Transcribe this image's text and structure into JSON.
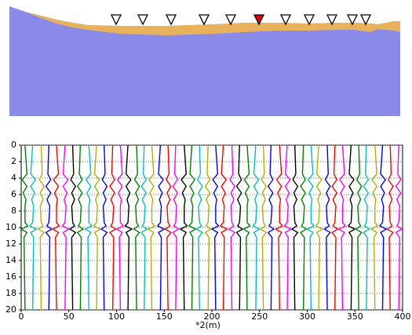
{
  "chart_data": [
    {
      "type": "profile",
      "x": [
        0,
        20,
        40,
        60,
        80,
        100,
        140,
        200,
        260,
        300,
        340,
        380,
        420,
        440,
        460,
        470,
        490,
        498
      ],
      "surface": [
        3,
        10,
        15,
        20,
        24,
        27,
        28,
        28,
        26,
        24,
        24,
        25,
        24,
        24,
        25,
        26,
        22,
        22
      ],
      "interface": [
        3,
        10,
        18,
        25,
        30,
        33,
        38,
        40,
        38,
        36,
        34,
        34,
        33,
        33,
        36,
        32,
        34,
        36
      ],
      "xlim": [
        0,
        498
      ],
      "ylim": [
        0,
        143
      ],
      "upper_color": "#e8b25c",
      "lower_color": "#8a8ae8",
      "receiver_x": [
        136,
        170,
        206,
        248,
        282,
        352,
        382,
        411,
        437,
        454
      ],
      "source_x": 318,
      "receiver_color": "#ffffff",
      "source_color": "#e00000"
    },
    {
      "type": "wiggle",
      "xlabel": "*2(m)",
      "xlim": [
        0,
        400
      ],
      "ylim": [
        20,
        0
      ],
      "xticks": [
        0,
        50,
        100,
        150,
        200,
        250,
        300,
        350,
        400
      ],
      "yticks": [
        0,
        2,
        4,
        6,
        8,
        10,
        12,
        14,
        16,
        18,
        20
      ],
      "grid": true,
      "t": [
        0,
        3.5,
        4.2,
        5,
        5.8,
        6.6,
        7.4,
        9.4,
        9.8,
        10.2,
        10.6,
        11.2,
        20
      ],
      "palette": [
        "#008000",
        "#00c0c0",
        "#b0b000",
        "#0000ff",
        "#ff0000",
        "#ff00ff",
        "#000000"
      ],
      "traces_x": [
        4,
        12,
        21,
        29,
        37,
        46,
        54,
        62,
        71,
        79,
        87,
        96,
        104,
        112,
        121,
        129,
        137,
        146,
        154,
        162,
        171,
        179,
        187,
        196,
        204,
        212,
        221,
        229,
        237,
        246,
        254,
        262,
        271,
        279,
        287,
        296,
        304,
        312,
        321,
        329,
        337,
        346,
        354,
        362,
        371,
        379,
        387,
        396
      ],
      "amplitudes": [
        [
          0,
          2,
          -3,
          2,
          -2,
          1,
          0,
          0,
          3,
          -4,
          2,
          -1,
          0
        ],
        [
          0,
          -2,
          3,
          -2,
          2,
          -1,
          1,
          0,
          -3,
          4,
          -2,
          1,
          0
        ],
        [
          0,
          1,
          -2,
          3,
          -1,
          2,
          -1,
          0,
          2,
          -3,
          3,
          -1,
          0
        ],
        [
          0,
          -1,
          2,
          -3,
          2,
          -2,
          1,
          0,
          -2,
          3,
          -3,
          1,
          0
        ],
        [
          0,
          2,
          -3,
          2,
          -2,
          1,
          0,
          0,
          3,
          -4,
          2,
          -1,
          0
        ],
        [
          0,
          -2,
          3,
          -2,
          2,
          -1,
          1,
          0,
          -3,
          4,
          -2,
          1,
          0
        ],
        [
          0,
          1,
          -2,
          3,
          -1,
          2,
          -1,
          0,
          2,
          -3,
          3,
          -1,
          0
        ],
        [
          0,
          -1,
          2,
          -3,
          2,
          -2,
          1,
          0,
          -2,
          3,
          -3,
          1,
          0
        ],
        [
          0,
          2,
          -3,
          2,
          -2,
          1,
          0,
          0,
          3,
          -4,
          2,
          -1,
          0
        ],
        [
          0,
          -2,
          3,
          -2,
          2,
          -1,
          1,
          0,
          -3,
          4,
          -2,
          1,
          0
        ],
        [
          0,
          1,
          -2,
          3,
          -1,
          2,
          -1,
          0,
          2,
          -3,
          3,
          -1,
          0
        ],
        [
          0,
          -1,
          2,
          -3,
          2,
          -2,
          1,
          0,
          -2,
          3,
          -3,
          1,
          0
        ],
        [
          0,
          2,
          -3,
          2,
          -2,
          1,
          0,
          0,
          3,
          -4,
          2,
          -1,
          0
        ],
        [
          0,
          -2,
          3,
          -2,
          2,
          -1,
          1,
          0,
          -3,
          4,
          -2,
          1,
          0
        ],
        [
          0,
          1,
          -2,
          3,
          -1,
          2,
          -1,
          0,
          2,
          -3,
          3,
          -1,
          0
        ],
        [
          0,
          -1,
          2,
          -3,
          2,
          -2,
          1,
          0,
          -2,
          3,
          -3,
          1,
          0
        ],
        [
          0,
          2,
          -3,
          2,
          -2,
          1,
          0,
          0,
          3,
          -4,
          2,
          -1,
          0
        ],
        [
          0,
          -2,
          3,
          -2,
          2,
          -1,
          1,
          0,
          -3,
          4,
          -2,
          1,
          0
        ],
        [
          0,
          1,
          -2,
          3,
          -1,
          2,
          -1,
          0,
          2,
          -3,
          3,
          -1,
          0
        ],
        [
          0,
          -1,
          2,
          -3,
          2,
          -2,
          1,
          0,
          -2,
          3,
          -3,
          1,
          0
        ],
        [
          0,
          2,
          -3,
          2,
          -2,
          1,
          0,
          0,
          3,
          -4,
          2,
          -1,
          0
        ],
        [
          0,
          -2,
          3,
          -2,
          2,
          -1,
          1,
          0,
          -3,
          4,
          -2,
          1,
          0
        ],
        [
          0,
          1,
          -2,
          3,
          -1,
          2,
          -1,
          0,
          2,
          -3,
          3,
          -1,
          0
        ],
        [
          0,
          -1,
          2,
          -3,
          2,
          -2,
          1,
          0,
          -2,
          3,
          -3,
          1,
          0
        ],
        [
          0,
          2,
          -3,
          2,
          -2,
          1,
          0,
          0,
          3,
          -4,
          2,
          -1,
          0
        ],
        [
          0,
          -2,
          3,
          -2,
          2,
          -1,
          1,
          0,
          -3,
          4,
          -2,
          1,
          0
        ],
        [
          0,
          1,
          -2,
          3,
          -1,
          2,
          -1,
          0,
          2,
          -3,
          3,
          -1,
          0
        ],
        [
          0,
          -1,
          2,
          -3,
          2,
          -2,
          1,
          0,
          -2,
          3,
          -3,
          1,
          0
        ],
        [
          0,
          2,
          -3,
          2,
          -2,
          1,
          0,
          0,
          3,
          -4,
          2,
          -1,
          0
        ],
        [
          0,
          -2,
          3,
          -2,
          2,
          -1,
          1,
          0,
          -3,
          4,
          -2,
          1,
          0
        ],
        [
          0,
          1,
          -2,
          3,
          -1,
          2,
          -1,
          0,
          2,
          -3,
          3,
          -1,
          0
        ],
        [
          0,
          -1,
          2,
          -3,
          2,
          -2,
          1,
          0,
          -2,
          3,
          -3,
          1,
          0
        ],
        [
          0,
          2,
          -3,
          2,
          -2,
          1,
          0,
          0,
          3,
          -4,
          2,
          -1,
          0
        ],
        [
          0,
          -2,
          3,
          -2,
          2,
          -1,
          1,
          0,
          -3,
          4,
          -2,
          1,
          0
        ],
        [
          0,
          1,
          -2,
          3,
          -1,
          2,
          -1,
          0,
          2,
          -3,
          3,
          -1,
          0
        ],
        [
          0,
          -1,
          2,
          -3,
          2,
          -2,
          1,
          0,
          -2,
          3,
          -3,
          1,
          0
        ],
        [
          0,
          2,
          -3,
          2,
          -2,
          1,
          0,
          0,
          3,
          -4,
          2,
          -1,
          0
        ],
        [
          0,
          -2,
          3,
          -2,
          2,
          -1,
          1,
          0,
          -3,
          4,
          -2,
          1,
          0
        ],
        [
          0,
          1,
          -2,
          3,
          -1,
          2,
          -1,
          0,
          2,
          -3,
          3,
          -1,
          0
        ],
        [
          0,
          -1,
          2,
          -3,
          2,
          -2,
          1,
          0,
          -2,
          3,
          -3,
          1,
          0
        ],
        [
          0,
          2,
          -3,
          2,
          -2,
          1,
          0,
          0,
          3,
          -4,
          2,
          -1,
          0
        ],
        [
          0,
          -2,
          3,
          -2,
          2,
          -1,
          1,
          0,
          -3,
          4,
          -2,
          1,
          0
        ],
        [
          0,
          1,
          -2,
          3,
          -1,
          2,
          -1,
          0,
          2,
          -3,
          3,
          -1,
          0
        ],
        [
          0,
          -1,
          2,
          -3,
          2,
          -2,
          1,
          0,
          -2,
          3,
          -3,
          1,
          0
        ],
        [
          0,
          2,
          -3,
          2,
          -2,
          1,
          0,
          0,
          3,
          -4,
          2,
          -1,
          0
        ],
        [
          0,
          -2,
          3,
          -2,
          2,
          -1,
          1,
          0,
          -3,
          4,
          -2,
          1,
          0
        ],
        [
          0,
          1,
          -2,
          3,
          -1,
          2,
          -1,
          0,
          2,
          -3,
          3,
          -1,
          0
        ],
        [
          0,
          -1,
          2,
          -3,
          2,
          -2,
          1,
          0,
          -2,
          3,
          -3,
          1,
          0
        ]
      ]
    }
  ]
}
